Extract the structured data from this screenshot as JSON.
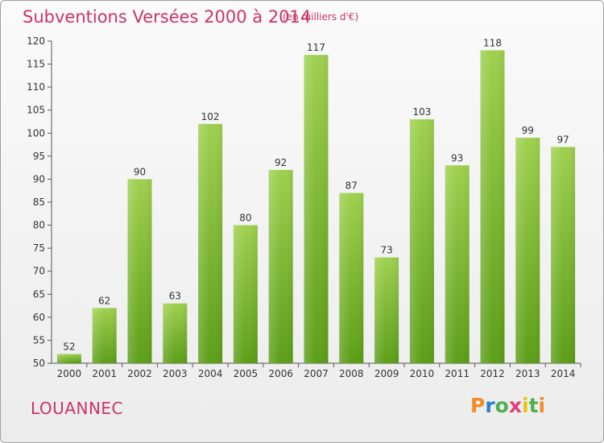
{
  "title": "Subventions Versées 2000 à 2014",
  "subtitle": "(en milliers d'€)",
  "commune": "LOUANNEC",
  "logo": {
    "text": "Proxiti",
    "letters": [
      "P",
      "r",
      "o",
      "x",
      "i",
      "t",
      "i"
    ],
    "colors": [
      "#f28c28",
      "#2a7fd0",
      "#4caf50",
      "#e0407a",
      "#f2c200",
      "#4caf50",
      "#f28c28"
    ]
  },
  "colors": {
    "title": "#cc3366",
    "bar_top": "#9fd04f",
    "bar_bottom": "#5c9e18",
    "axis": "#555555",
    "grid": "#d6d6d6"
  },
  "chart_data": {
    "type": "bar",
    "title": "Subventions Versées 2000 à 2014",
    "subtitle": "(en milliers d'€)",
    "xlabel": "",
    "ylabel": "",
    "categories": [
      "2000",
      "2001",
      "2002",
      "2003",
      "2004",
      "2005",
      "2006",
      "2007",
      "2008",
      "2009",
      "2010",
      "2011",
      "2012",
      "2013",
      "2014"
    ],
    "values": [
      52,
      62,
      90,
      63,
      102,
      80,
      92,
      117,
      87,
      73,
      103,
      93,
      118,
      99,
      97
    ],
    "ylim": [
      50,
      120
    ],
    "yticks": [
      50,
      55,
      60,
      65,
      70,
      75,
      80,
      85,
      90,
      95,
      100,
      105,
      110,
      115,
      120
    ],
    "grid": false,
    "data_labels": true
  }
}
